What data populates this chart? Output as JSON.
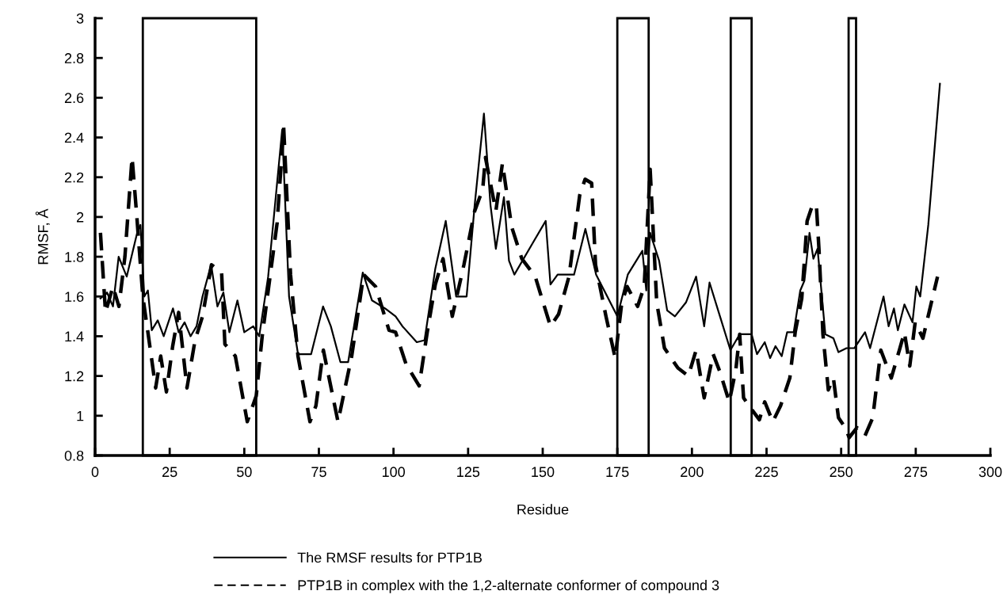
{
  "chart_data": {
    "type": "line",
    "xlabel": "Residue",
    "ylabel": "RMSF, Å",
    "xlim": [
      0,
      300
    ],
    "xticks": [
      0,
      25,
      50,
      75,
      100,
      125,
      150,
      175,
      200,
      225,
      250,
      275,
      300
    ],
    "ylim": [
      0.8,
      3
    ],
    "yticks": [
      {
        "value": 0.8,
        "label": "0.8"
      },
      1,
      {
        "value": 1.2,
        "label": "1.2"
      },
      {
        "value": 1.4,
        "label": "1.4"
      },
      {
        "value": 1.6,
        "label": "1.6"
      },
      {
        "value": 1.8,
        "label": "1.8"
      },
      2,
      {
        "value": 2.2,
        "label": "2.2"
      },
      {
        "value": 2.4,
        "label": "2.4"
      },
      {
        "value": 2.6,
        "label": "2.6"
      },
      {
        "value": 2.8,
        "label": "2.8"
      },
      3
    ],
    "grid": false,
    "legend": "bottom",
    "marker": "none",
    "bands": [
      {
        "axis": "x",
        "from": 16,
        "to": 54,
        "color": "#000000"
      },
      {
        "axis": "x",
        "from": 175,
        "to": 185.5,
        "color": "#000000"
      },
      {
        "axis": "x",
        "from": 213,
        "to": 220,
        "color": "#000000"
      },
      {
        "axis": "x",
        "from": 252.5,
        "to": 255,
        "color": "#000000"
      }
    ],
    "series": [
      {
        "name": "The RMSF results for PTP1B",
        "color": "#000000",
        "line_style": "solid",
        "x": [
          1.8,
          4,
          6,
          7.9,
          10.6,
          14.1,
          15.2,
          16.5,
          17.7,
          19,
          21,
          23,
          26.1,
          28,
          30,
          32,
          34,
          36,
          38.9,
          41,
          43,
          45,
          47.7,
          50,
          53,
          55,
          58,
          62.7,
          65,
          68,
          72.4,
          76.4,
          79,
          82.2,
          84.8,
          89.7,
          92.8,
          97.2,
          100.7,
          103,
          107.8,
          110.4,
          114,
          117.5,
          121,
          124.5,
          127.2,
          130.3,
          132.5,
          134.3,
          137,
          138.7,
          140.5,
          146.7,
          151,
          152.6,
          155,
          160.5,
          164.3,
          167.9,
          175,
          178.5,
          183.4,
          184.7,
          186,
          189,
          191.7,
          194.3,
          198,
          201.4,
          204.1,
          205.9,
          209.4,
          212.9,
          216,
          220,
          221.8,
          224.4,
          226.2,
          228,
          230.1,
          231.9,
          234.1,
          236.3,
          237.7,
          239.4,
          240.7,
          242.1,
          244.7,
          247.4,
          249.1,
          251.8,
          254.4,
          258,
          259.7,
          264.2,
          265.9,
          267.7,
          269,
          271.2,
          273.9,
          275.2,
          276.5,
          279.2,
          283.1
        ],
        "values": [
          1.59,
          1.62,
          1.55,
          1.8,
          1.7,
          1.92,
          1.96,
          1.6,
          1.63,
          1.43,
          1.48,
          1.4,
          1.54,
          1.42,
          1.47,
          1.4,
          1.45,
          1.6,
          1.76,
          1.55,
          1.62,
          1.42,
          1.58,
          1.42,
          1.45,
          1.4,
          1.7,
          2.44,
          1.6,
          1.31,
          1.31,
          1.55,
          1.45,
          1.27,
          1.27,
          1.72,
          1.58,
          1.54,
          1.5,
          1.45,
          1.37,
          1.38,
          1.74,
          1.98,
          1.6,
          1.6,
          2.06,
          2.52,
          2.06,
          1.84,
          2.1,
          1.78,
          1.71,
          1.87,
          1.98,
          1.66,
          1.71,
          1.71,
          1.94,
          1.71,
          1.5,
          1.71,
          1.83,
          1.63,
          1.92,
          1.78,
          1.53,
          1.5,
          1.57,
          1.7,
          1.45,
          1.67,
          1.5,
          1.33,
          1.41,
          1.41,
          1.31,
          1.37,
          1.29,
          1.35,
          1.3,
          1.42,
          1.42,
          1.63,
          1.68,
          1.92,
          1.79,
          1.84,
          1.41,
          1.39,
          1.32,
          1.34,
          1.34,
          1.42,
          1.34,
          1.6,
          1.45,
          1.54,
          1.43,
          1.56,
          1.47,
          1.65,
          1.6,
          1.96,
          2.67
        ]
      },
      {
        "name": "PTP1B in complex with the 1,2-alternate conformer of compound 3",
        "color": "#000000",
        "line_style": "dashed",
        "x": [
          1.8,
          3.5,
          6,
          8,
          10,
          12.4,
          14,
          16,
          17.7,
          20.3,
          22,
          23.9,
          26,
          28,
          30.8,
          33.5,
          36,
          39,
          42.4,
          43.5,
          47,
          51,
          54,
          56,
          61,
          63.2,
          65.5,
          68,
          72,
          74,
          76.5,
          81.4,
          86,
          90,
          94,
          98.5,
          100.7,
          104.2,
          108.6,
          111.3,
          114,
          116.6,
          119.7,
          123.6,
          127.2,
          129.9,
          130.8,
          134.3,
          136.5,
          139.6,
          143,
          147.5,
          152.6,
          155.3,
          158.8,
          162.4,
          164.2,
          166.4,
          167.7,
          171.2,
          174.3,
          176.5,
          178.3,
          181.8,
          184,
          186,
          188.2,
          190.8,
          195.3,
          198.8,
          201.4,
          204.1,
          207.1,
          209.4,
          212.5,
          214.7,
          216,
          217.3,
          219.1,
          222.6,
          224.4,
          227.1,
          229.7,
          232.8,
          234.6,
          236.8,
          238.6,
          240.4,
          241.7,
          242.6,
          243.9,
          245.7,
          247.4,
          249.1,
          251.4,
          252.7,
          255.3,
          258,
          260.6,
          263.3,
          266.8,
          269.5,
          271.2,
          273,
          274.8,
          277.4,
          282.3
        ],
        "values": [
          1.92,
          1.52,
          1.65,
          1.55,
          1.8,
          2.3,
          2.0,
          1.6,
          1.42,
          1.14,
          1.3,
          1.12,
          1.35,
          1.52,
          1.14,
          1.38,
          1.5,
          1.76,
          1.72,
          1.36,
          1.3,
          0.97,
          1.1,
          1.4,
          1.97,
          2.45,
          1.71,
          1.3,
          0.97,
          1.05,
          1.33,
          0.97,
          1.3,
          1.71,
          1.65,
          1.43,
          1.42,
          1.26,
          1.15,
          1.42,
          1.66,
          1.79,
          1.5,
          1.76,
          2.03,
          2.14,
          2.3,
          2.03,
          2.27,
          1.95,
          1.79,
          1.7,
          1.45,
          1.51,
          1.7,
          2.11,
          2.19,
          2.17,
          1.76,
          1.5,
          1.29,
          1.57,
          1.65,
          1.55,
          1.65,
          2.24,
          1.57,
          1.34,
          1.24,
          1.2,
          1.33,
          1.09,
          1.31,
          1.22,
          1.07,
          1.23,
          1.41,
          1.09,
          1.05,
          0.98,
          1.07,
          0.97,
          1.05,
          1.19,
          1.42,
          1.59,
          1.98,
          2.06,
          2.06,
          1.83,
          1.41,
          1.13,
          1.19,
          0.99,
          0.94,
          0.89,
          0.94,
          0.9,
          0.99,
          1.33,
          1.19,
          1.33,
          1.42,
          1.25,
          1.47,
          1.39,
          1.7
        ]
      }
    ]
  }
}
